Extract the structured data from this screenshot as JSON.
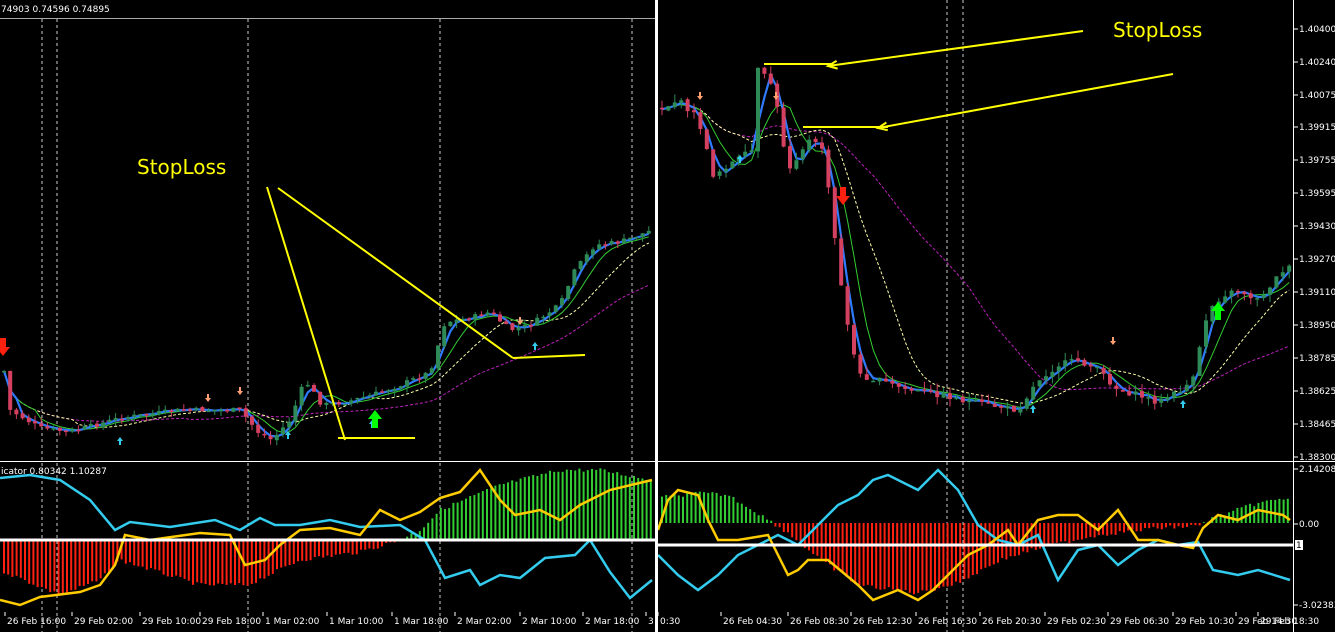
{
  "colors": {
    "background": "#000000",
    "grid": "#ffffff",
    "bull_candle": "#2e8b57",
    "bear_candle": "#d44060",
    "ma_fast": "#2f7bff",
    "ma_mid": "#32cd32",
    "ma_slow_dash": "#ffffaa",
    "ma_long_dash": "#c020c0",
    "hist_pos": "#32cd32",
    "hist_neg": "#ff2010",
    "osc_cyan": "#33ccee",
    "osc_yellow": "#ffcc00",
    "annotation": "#ffff00",
    "arrow_up_small": "#33ccee",
    "arrow_down_small": "#ffa070",
    "arrow_up_big": "#00ff00",
    "arrow_down_big": "#ff2010"
  },
  "left_chart": {
    "ohlc_header": "74903 0.74596 0.74895",
    "annotation_label": "StopLoss",
    "indicator_header": "icator 0.80342 1.10287",
    "time_labels": [
      "26 Feb 16:00",
      "29 Feb 02:00",
      "29 Feb 10:00",
      "29 Feb 18:00",
      "1 Mar 02:00",
      "1 Mar 10:00",
      "1 Mar 18:00",
      "2 Mar 02:00",
      "2 Mar 10:00",
      "2 Mar 18:00",
      "3"
    ]
  },
  "right_chart": {
    "annotation_label": "StopLoss",
    "price_labels": [
      "1.40400",
      "1.40240",
      "1.40075",
      "1.39915",
      "1.39755",
      "1.39595",
      "1.39430",
      "1.39270",
      "1.39110",
      "1.38950",
      "1.38785",
      "1.38625",
      "1.38465",
      "1.38300"
    ],
    "indicator_labels": [
      "2.142086",
      "0.00",
      "1",
      "-3.02383"
    ],
    "time_labels": [
      "0:30",
      "26 Feb 04:30",
      "26 Feb 08:30",
      "26 Feb 12:30",
      "26 Feb 16:30",
      "26 Feb 20:30",
      "29 Feb 02:30",
      "29 Feb 06:30",
      "29 Feb 10:30",
      "29 Feb 14:30",
      "29 Feb 18:30"
    ]
  }
}
